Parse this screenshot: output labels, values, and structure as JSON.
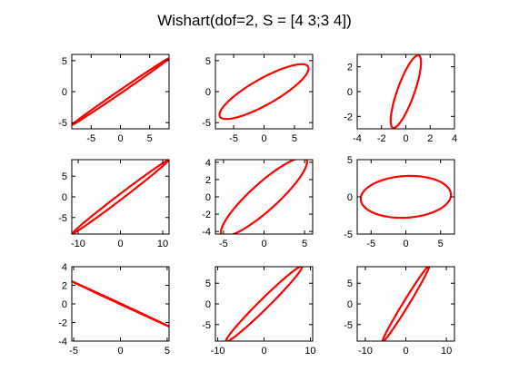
{
  "figure": {
    "title": "Wishart(dof=2, S = [4 3;3 4])",
    "background": "#ffffff",
    "axes_color": "#000000",
    "line_color": "#ff0000"
  },
  "chart_data": [
    {
      "type": "line",
      "panel": "row-1-col-1",
      "xlim": [
        -8.3,
        8.3
      ],
      "ylim": [
        -6,
        6
      ],
      "xticks": [
        -5,
        0,
        5
      ],
      "yticks": [
        -5,
        0,
        5
      ],
      "ellipse": {
        "center": [
          0,
          0
        ],
        "semi_axes": [
          9.8,
          0.25
        ],
        "angle_deg": 33
      },
      "series": [
        {
          "color": "#ff0000"
        }
      ]
    },
    {
      "type": "line",
      "panel": "row-1-col-2",
      "xlim": [
        -8,
        8
      ],
      "ylim": [
        -6,
        6
      ],
      "xticks": [
        -5,
        0,
        5
      ],
      "yticks": [
        -5,
        0,
        5
      ],
      "ellipse": {
        "center": [
          0,
          0
        ],
        "semi_axes": [
          8.3,
          2.1
        ],
        "angle_deg": 29
      },
      "series": [
        {
          "color": "#ff0000"
        }
      ]
    },
    {
      "type": "line",
      "panel": "row-1-col-3",
      "xlim": [
        -4,
        4
      ],
      "ylim": [
        -3,
        3
      ],
      "xticks": [
        -4,
        -2,
        0,
        2,
        4
      ],
      "yticks": [
        -2,
        0,
        2
      ],
      "ellipse": {
        "center": [
          0,
          0
        ],
        "semi_axes": [
          3.1,
          0.7
        ],
        "angle_deg": 70
      },
      "series": [
        {
          "color": "#ff0000"
        }
      ]
    },
    {
      "type": "line",
      "panel": "row-2-col-1",
      "xlim": [
        -11.5,
        11.5
      ],
      "ylim": [
        -9,
        9
      ],
      "xticks": [
        -10,
        0,
        10
      ],
      "yticks": [
        -5,
        0,
        5
      ],
      "ellipse": {
        "center": [
          0,
          0
        ],
        "semi_axes": [
          14.3,
          0.6
        ],
        "angle_deg": 38
      },
      "series": [
        {
          "color": "#ff0000"
        }
      ]
    },
    {
      "type": "line",
      "panel": "row-2-col-2",
      "xlim": [
        -6,
        6
      ],
      "ylim": [
        -4.3,
        4.3
      ],
      "xticks": [
        -5,
        0,
        5
      ],
      "yticks": [
        -4,
        -2,
        0,
        2,
        4
      ],
      "ellipse": {
        "center": [
          0,
          0
        ],
        "semi_axes": [
          6.8,
          1.6
        ],
        "angle_deg": 40
      },
      "series": [
        {
          "color": "#ff0000"
        }
      ]
    },
    {
      "type": "line",
      "panel": "row-2-col-3",
      "xlim": [
        -7,
        7
      ],
      "ylim": [
        -5,
        5
      ],
      "xticks": [
        -5,
        0,
        5
      ],
      "yticks": [
        -5,
        0,
        5
      ],
      "ellipse": {
        "center": [
          0,
          0
        ],
        "semi_axes": [
          6.5,
          2.8
        ],
        "angle_deg": 3
      },
      "series": [
        {
          "color": "#ff0000"
        }
      ]
    },
    {
      "type": "line",
      "panel": "row-3-col-1",
      "xlim": [
        -5.2,
        5.2
      ],
      "ylim": [
        -4,
        4
      ],
      "xticks": [
        -5,
        0,
        5
      ],
      "yticks": [
        -4,
        -2,
        0,
        2,
        4
      ],
      "ellipse": {
        "center": [
          0,
          0
        ],
        "semi_axes": [
          5.7,
          0.04
        ],
        "angle_deg": -25
      },
      "series": [
        {
          "color": "#ff0000"
        }
      ]
    },
    {
      "type": "line",
      "panel": "row-3-col-2",
      "xlim": [
        -10.5,
        10.5
      ],
      "ylim": [
        -9,
        9
      ],
      "xticks": [
        -10,
        0,
        10
      ],
      "yticks": [
        -5,
        0,
        5
      ],
      "ellipse": {
        "center": [
          0,
          0
        ],
        "semi_axes": [
          12.2,
          1.1
        ],
        "angle_deg": 48
      },
      "series": [
        {
          "color": "#ff0000"
        }
      ]
    },
    {
      "type": "line",
      "panel": "row-3-col-3",
      "xlim": [
        -12,
        12
      ],
      "ylim": [
        -9,
        9
      ],
      "xticks": [
        -10,
        0,
        10
      ],
      "yticks": [
        -5,
        0,
        5
      ],
      "ellipse": {
        "center": [
          0,
          0
        ],
        "semi_axes": [
          10.9,
          0.7
        ],
        "angle_deg": 58
      },
      "series": [
        {
          "color": "#ff0000"
        }
      ]
    }
  ]
}
